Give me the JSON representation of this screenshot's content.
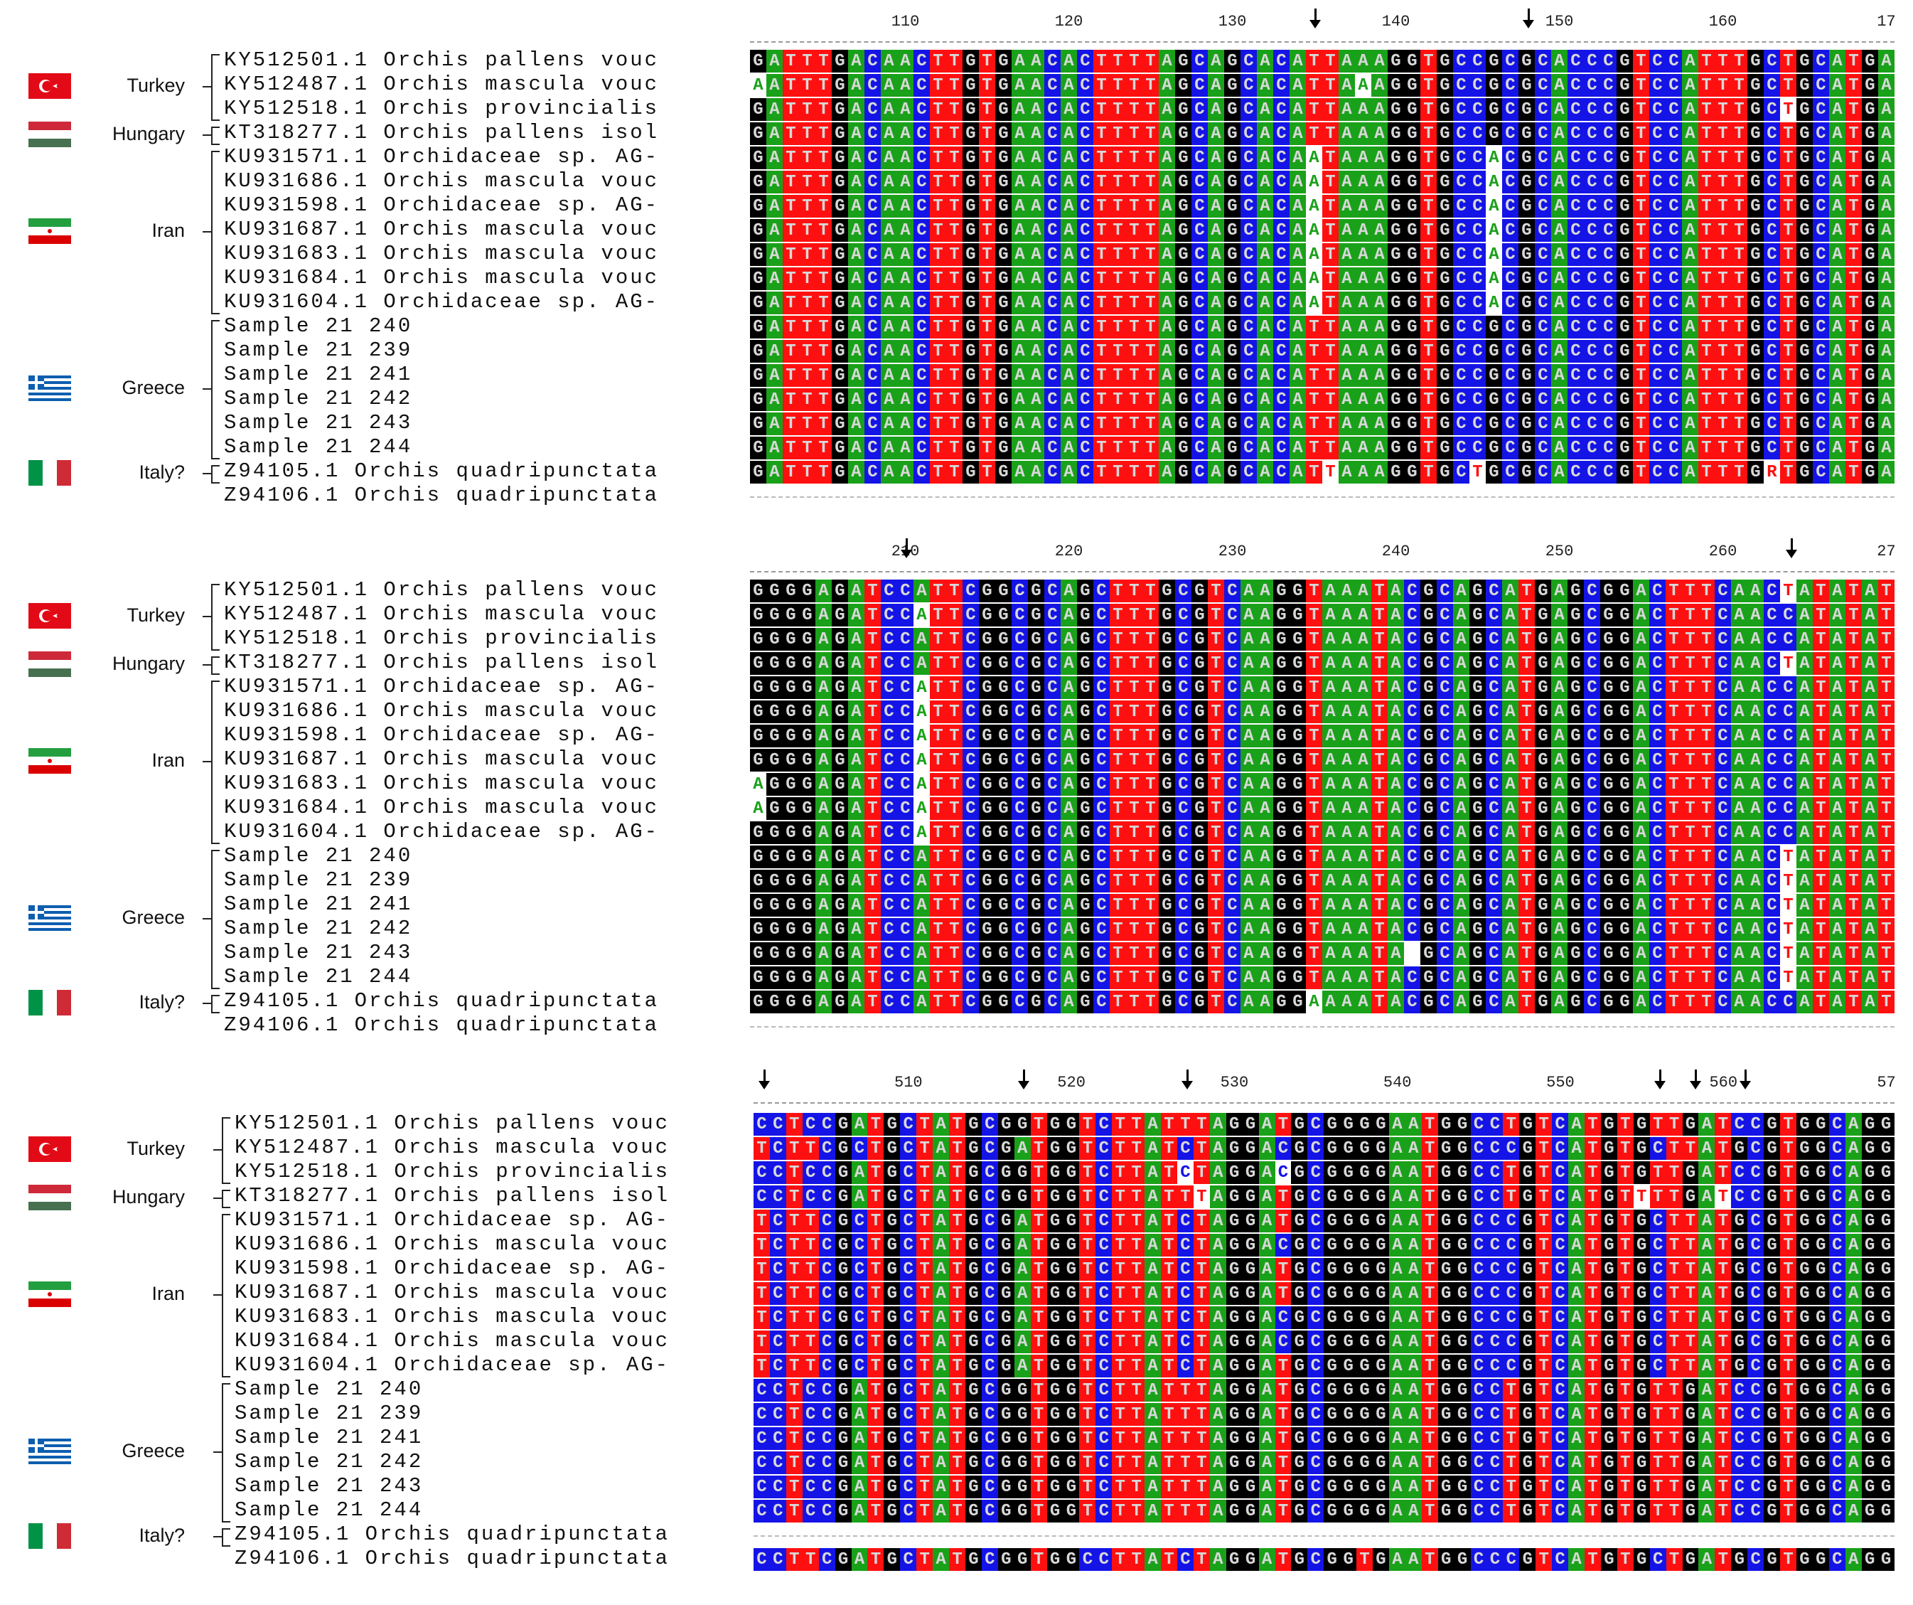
{
  "colors": {
    "A": "#1aa11a",
    "C": "#1414e6",
    "G": "#000000",
    "T": "#ff1010",
    "N": "#ffffff",
    "text_on_base": "#d8d8d8"
  },
  "flags": [
    "turkey-flag-icon",
    "hungary-flag-icon",
    "iran-flag-icon",
    "greece-flag-icon",
    "italy-flag-icon"
  ],
  "countries": [
    "Turkey",
    "Hungary",
    "Iran",
    "Greece",
    "Italy?"
  ],
  "sequence_names": [
    "KY512501.1 Orchis pallens vouc",
    "KY512487.1 Orchis mascula vouc",
    "KY512518.1 Orchis provincialis",
    "KT318277.1 Orchis pallens isol",
    "KU931571.1 Orchidaceae sp. AG-",
    "KU931686.1 Orchis mascula vouc",
    "KU931598.1 Orchidaceae sp. AG-",
    "KU931687.1 Orchis mascula vouc",
    "KU931683.1 Orchis mascula vouc",
    "KU931684.1 Orchis mascula vouc",
    "KU931604.1 Orchidaceae sp. AG-",
    "Sample 21 240",
    "Sample 21 239",
    "Sample 21 241",
    "Sample 21 242",
    "Sample 21 243",
    "Sample 21 244",
    "Z94105.1 Orchis quadripunctata",
    "Z94106.1 Orchis quadripunctata"
  ],
  "panels": [
    {
      "ruler": [
        "110",
        "120",
        "130",
        "140",
        "150",
        "160",
        "17"
      ],
      "reference": "GATTTGACAACTTGTGAACACTTTTAGCAGCACATTAAAGGTGCCGCGCACCCGTCCATTTGCTGCATGA",
      "variants": [
        "",
        "A....................................A.....................",
        "...............................................................T.....",
        "",
        "..................................A..........A....................",
        "..................................A..........A....................",
        "..................................A..........A....................",
        "..................................A..........A....................",
        "..................................A..........A....................",
        "..................................A..........A....................",
        "..................................A..........A....................",
        "",
        "",
        "",
        "",
        "",
        "",
        "...................................T........T.................R.....",
        "-"
      ]
    },
    {
      "ruler": [
        "210",
        "220",
        "230",
        "240",
        "250",
        "260",
        "27"
      ],
      "reference": "GGGGAGATCCATTCGGCGCAGCTTTGCGTCAAGGTAAATACGCAGCATGAGCGGACTTTCAACCATATAT",
      "variants": [
        "...............................................................T......",
        "..........A...........................................................",
        "",
        "...............................................................T......",
        "..........A...........................................................",
        "..........A...........................................................",
        "..........A...........................................................",
        "..........A...........................................................",
        "A.........A...........................................................",
        "A.........A...........................................................",
        "..........A...........................................................",
        "...............................................................T......",
        "...............................................................T......",
        "...............................................................T......",
        "...............................................................T......",
        "........................................N......................T......",
        "...............................................................T......",
        "..................................A..............................",
        "-"
      ]
    },
    {
      "ruler": [
        "510",
        "520",
        "530",
        "540",
        "550",
        "560",
        "57"
      ],
      "reference": "CCTCCGATGCTATGCGGTGGTCTTATTTAGGATGCGGGGAATGGCCTGTCATGTGTTGATCCGTGGCAGG",
      "variants": [
        "",
        "TCTTCGCTGCTATGCGATGGTCTTATCTAGGACGCGGGGAATGGCCCGTCATGTGCTTATGCGTGGCAGG",
        "..........................C.....C.................................",
        "...........................T..........................T....T.........",
        "TCTTCGCTGCTATGCGATGGTCTTATCTAGGATGCGGGGAATGGCCCGTCATGTGCTTATGCGTGGCAGG",
        "TCTTCGCTGCTATGCGATGGTCTTATCTAGGACGCGGGGAATGGCCCGTCATGTGCTTATGCGTGGCAGG",
        "TCTTCGCTGCTATGCGATGGTCTTATCTAGGATGCGGGGAATGGCCCGTCATGTGCTTATGCGTGGCAGG",
        "TCTTCGCTGCTATGCGATGGTCTTATCTAGGATGCGGGGAATGGCCCGTCATGTGCTTATGCGTGGCAGG",
        "TCTTCGCTGCTATGCGATGGTCTTATCTAGGACGCGGGGAATGGCCCGTCATGTGCTTATGCGTGGCAGG",
        "TCTTCGCTGCTATGCGATGGTCTTATCTAGGACGCGGGGAATGGCCCGTCATGTGCTTATGCGTGGCAGG",
        "TCTTCGCTGCTATGCGATGGTCTTATCTAGGATGCGGGGAATGGCCCGTCATGTGCTTATGCGTGGCAGG",
        "",
        "",
        "",
        "",
        "",
        "",
        "-",
        "CCTTCGATGCTATGCGGTGGCCTTATCTAGGATGCGGTGAATGGCCCGTCATGTGCTGATGCGTGGCAGG"
      ]
    }
  ]
}
